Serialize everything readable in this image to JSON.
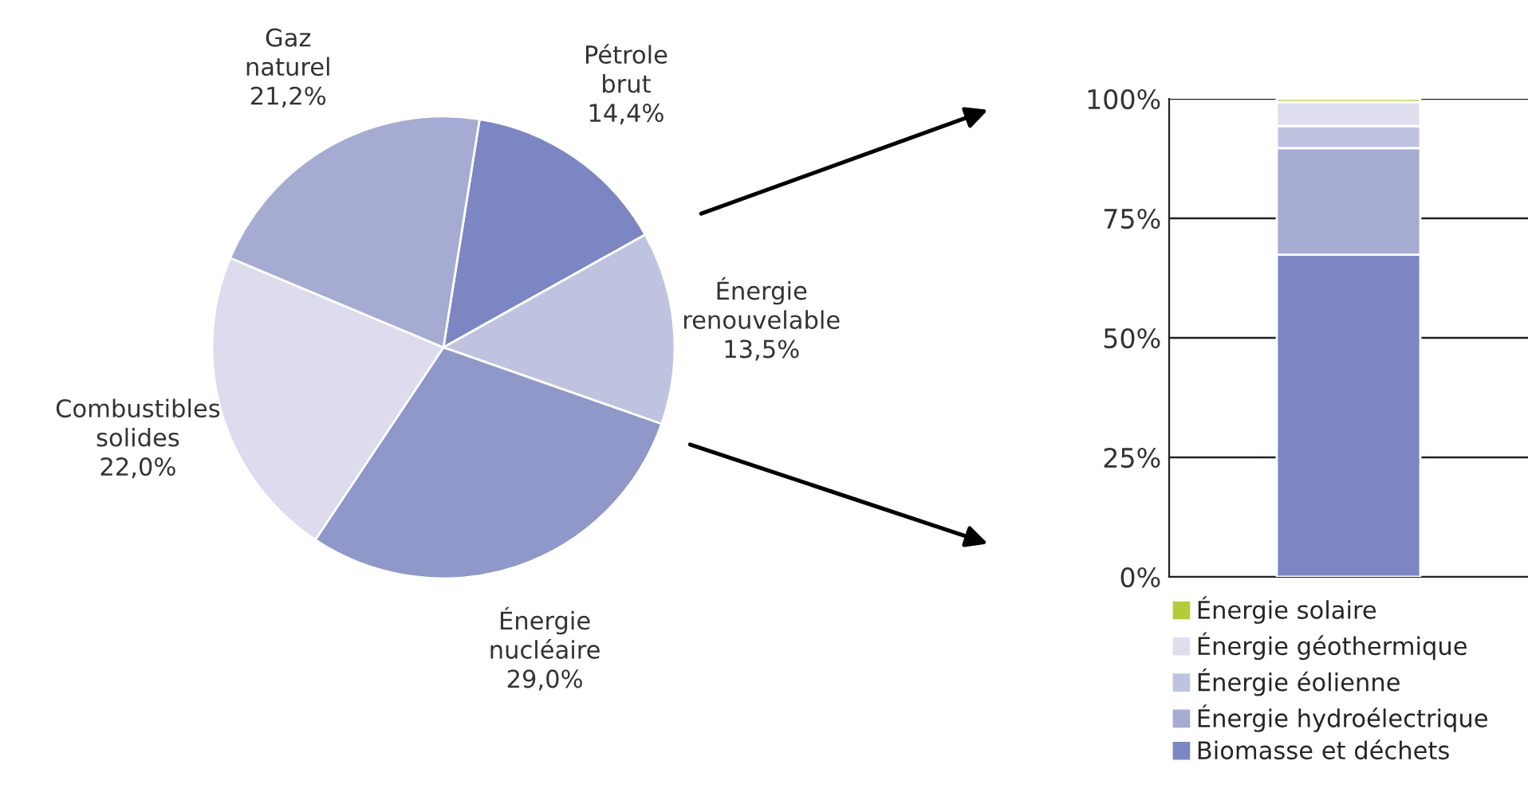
{
  "chart_data": [
    {
      "type": "pie",
      "categories": [
        "Pétrole\nbrut",
        "Énergie\nrenouvelable",
        "Énergie\nnucléaire",
        "Combustibles\nsolides",
        "Gaz\nnaturel"
      ],
      "values": [
        14.4,
        13.5,
        29.0,
        22.0,
        21.2
      ],
      "value_labels": [
        "14,4%",
        "13,5%",
        "29,0%",
        "22,0%",
        "21,2%"
      ],
      "colors": [
        "#7b86c2",
        "#c0c3e0",
        "#8f98c8",
        "#dcdcee",
        "#a6abd2"
      ]
    },
    {
      "type": "bar",
      "stacked": true,
      "categories": [
        null
      ],
      "series": [
        {
          "name": "Biomasse et déchets",
          "color": "#7b86c2",
          "values": [
            67.4
          ]
        },
        {
          "name": "Énergie hydroélectrique",
          "color": "#a6abd2",
          "values": [
            22.3
          ]
        },
        {
          "name": "Énergie éolienne",
          "color": "#c0c3e0",
          "values": [
            4.6
          ]
        },
        {
          "name": "Énergie géothermique",
          "color": "#dedeef",
          "values": [
            5.0
          ]
        },
        {
          "name": "Énergie solaire",
          "color": "#b5cc3a",
          "values": [
            0.7
          ]
        }
      ],
      "ylim": [
        0,
        100
      ],
      "yticks": [
        {
          "value": 0,
          "label": "0%"
        },
        {
          "value": 25,
          "label": "25%"
        },
        {
          "value": 50,
          "label": "50%"
        },
        {
          "value": 75,
          "label": "75%"
        },
        {
          "value": 100,
          "label": "100%"
        }
      ],
      "grid": "y",
      "legend": "bottom"
    }
  ]
}
